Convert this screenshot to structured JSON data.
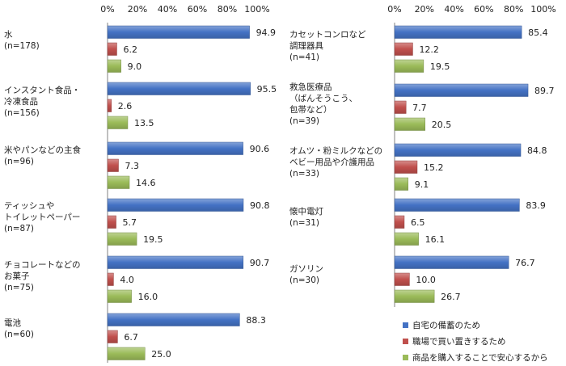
{
  "chart_data": {
    "type": "bar",
    "orientation": "horizontal",
    "xlim": [
      0,
      100
    ],
    "x_ticks": [
      "0%",
      "20%",
      "40%",
      "60%",
      "80%",
      "100%"
    ],
    "grid": false,
    "legend": {
      "placement": "bottom-right",
      "entries": [
        {
          "name": "自宅の備蓄のため",
          "color": "#4472c4"
        },
        {
          "name": "職場で買い置きするため",
          "color": "#c0504d"
        },
        {
          "name": "商品を購入することで安心するから",
          "color": "#9bbb59"
        }
      ]
    },
    "panels": [
      {
        "categories": [
          {
            "label": [
              "水",
              "(n=178)"
            ],
            "values": [
              94.9,
              6.2,
              9.0
            ],
            "value_labels": [
              "94.9",
              "6.2",
              "9.0"
            ]
          },
          {
            "label": [
              "インスタント食品・",
              "冷凍食品",
              "(n=156)"
            ],
            "values": [
              95.5,
              2.6,
              13.5
            ],
            "value_labels": [
              "95.5",
              "2.6",
              "13.5"
            ]
          },
          {
            "label": [
              "米やパンなどの主食",
              "(n=96)"
            ],
            "values": [
              90.6,
              7.3,
              14.6
            ],
            "value_labels": [
              "90.6",
              "7.3",
              "14.6"
            ]
          },
          {
            "label": [
              "ティッシュや",
              "トイレットペーパー",
              "(n=87)"
            ],
            "values": [
              90.8,
              5.7,
              19.5
            ],
            "value_labels": [
              "90.8",
              "5.7",
              "19.5"
            ]
          },
          {
            "label": [
              "チョコレートなどの",
              "お菓子",
              "(n=75)"
            ],
            "values": [
              90.7,
              4.0,
              16.0
            ],
            "value_labels": [
              "90.7",
              "4.0",
              "16.0"
            ]
          },
          {
            "label": [
              "電池",
              "(n=60)"
            ],
            "values": [
              88.3,
              6.7,
              25.0
            ],
            "value_labels": [
              "88.3",
              "6.7",
              "25.0"
            ]
          }
        ]
      },
      {
        "categories": [
          {
            "label": [
              "カセットコンロなど",
              "調理器具",
              "(n=41)"
            ],
            "values": [
              85.4,
              12.2,
              19.5
            ],
            "value_labels": [
              "85.4",
              "12.2",
              "19.5"
            ]
          },
          {
            "label": [
              "救急医療品",
              "（ばんそうこう、",
              "包帯など）",
              "(n=39)"
            ],
            "values": [
              89.7,
              7.7,
              20.5
            ],
            "value_labels": [
              "89.7",
              "7.7",
              "20.5"
            ]
          },
          {
            "label": [
              "オムツ・粉ミルクなどの",
              "ベビー用品や介護用品",
              "(n=33)"
            ],
            "values": [
              84.8,
              15.2,
              9.1
            ],
            "value_labels": [
              "84.8",
              "15.2",
              "9.1"
            ]
          },
          {
            "label": [
              "懐中電灯",
              "(n=31)"
            ],
            "values": [
              83.9,
              6.5,
              16.1
            ],
            "value_labels": [
              "83.9",
              "6.5",
              "16.1"
            ]
          },
          {
            "label": [
              "ガソリン",
              "(n=30)"
            ],
            "values": [
              76.7,
              10.0,
              26.7
            ],
            "value_labels": [
              "76.7",
              "10.0",
              "26.7"
            ]
          }
        ]
      }
    ]
  }
}
